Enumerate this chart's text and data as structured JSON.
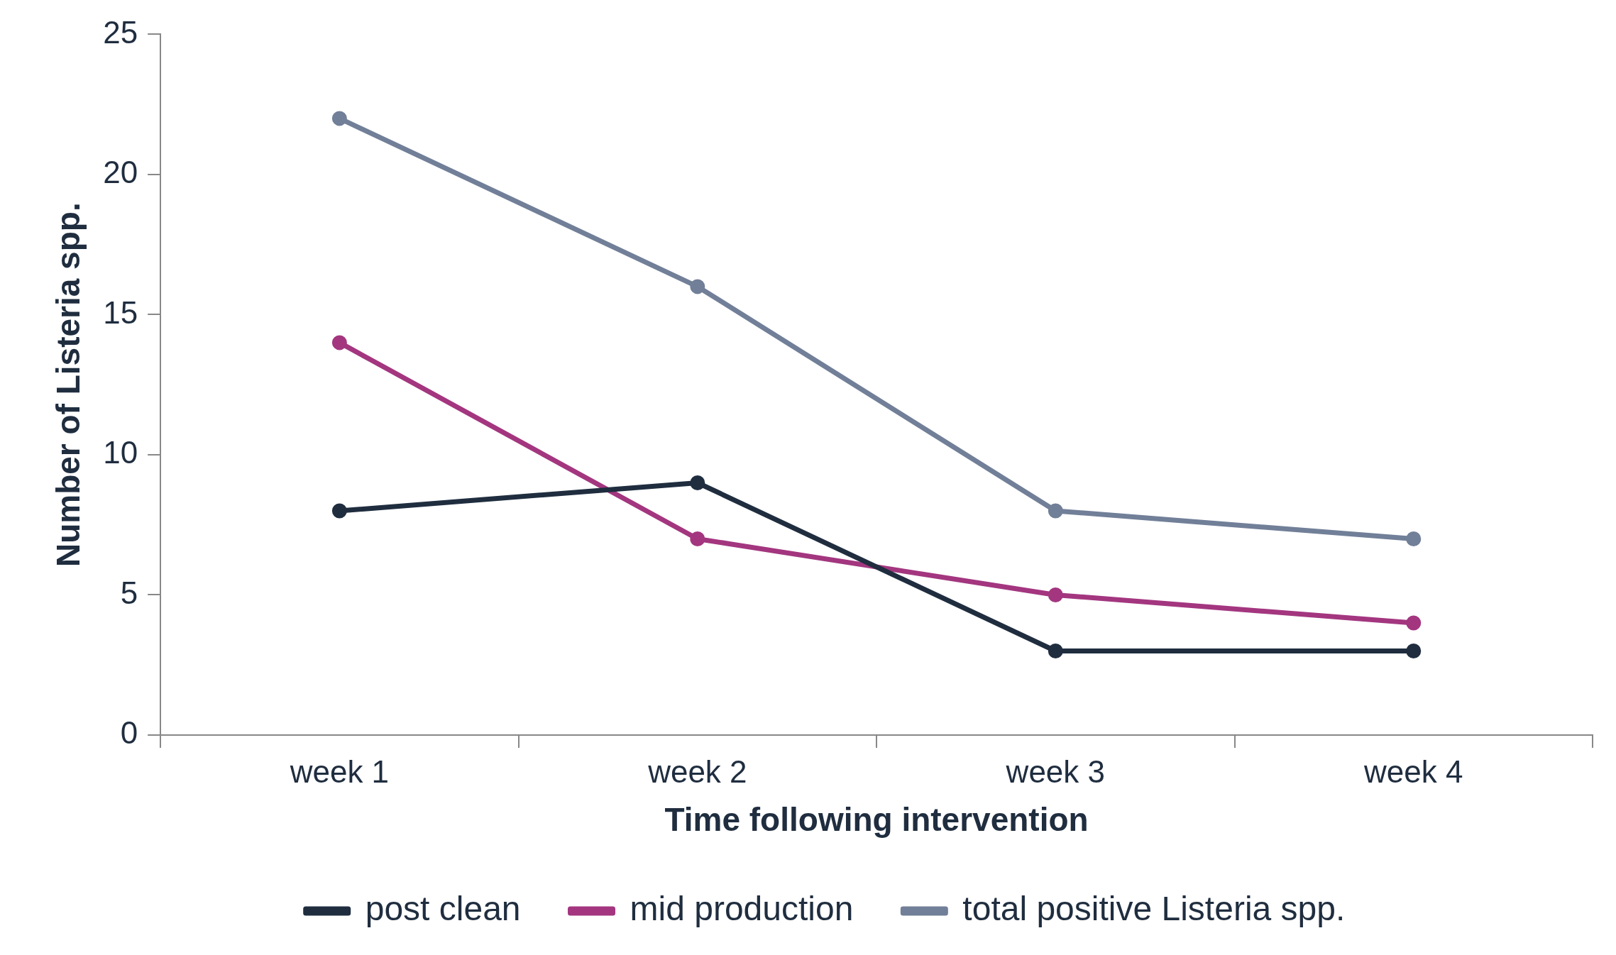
{
  "chart_data": {
    "type": "line",
    "xlabel": "Time following intervention",
    "ylabel": "Number of Listeria spp.",
    "categories": [
      "week 1",
      "week 2",
      "week 3",
      "week 4"
    ],
    "series": [
      {
        "name": "post clean",
        "color": "#1f2d3f",
        "values": [
          8,
          9,
          3,
          3
        ]
      },
      {
        "name": "mid production",
        "color": "#a3367f",
        "values": [
          14,
          7,
          5,
          4
        ]
      },
      {
        "name": "total positive Listeria spp.",
        "color": "#717f98",
        "values": [
          22,
          16,
          8,
          7
        ]
      }
    ],
    "ylim": [
      0,
      25
    ],
    "yticks": [
      0,
      5,
      10,
      15,
      20,
      25
    ],
    "grid": false,
    "legend": "bottom",
    "marker": "circle",
    "line_style": "solid"
  }
}
